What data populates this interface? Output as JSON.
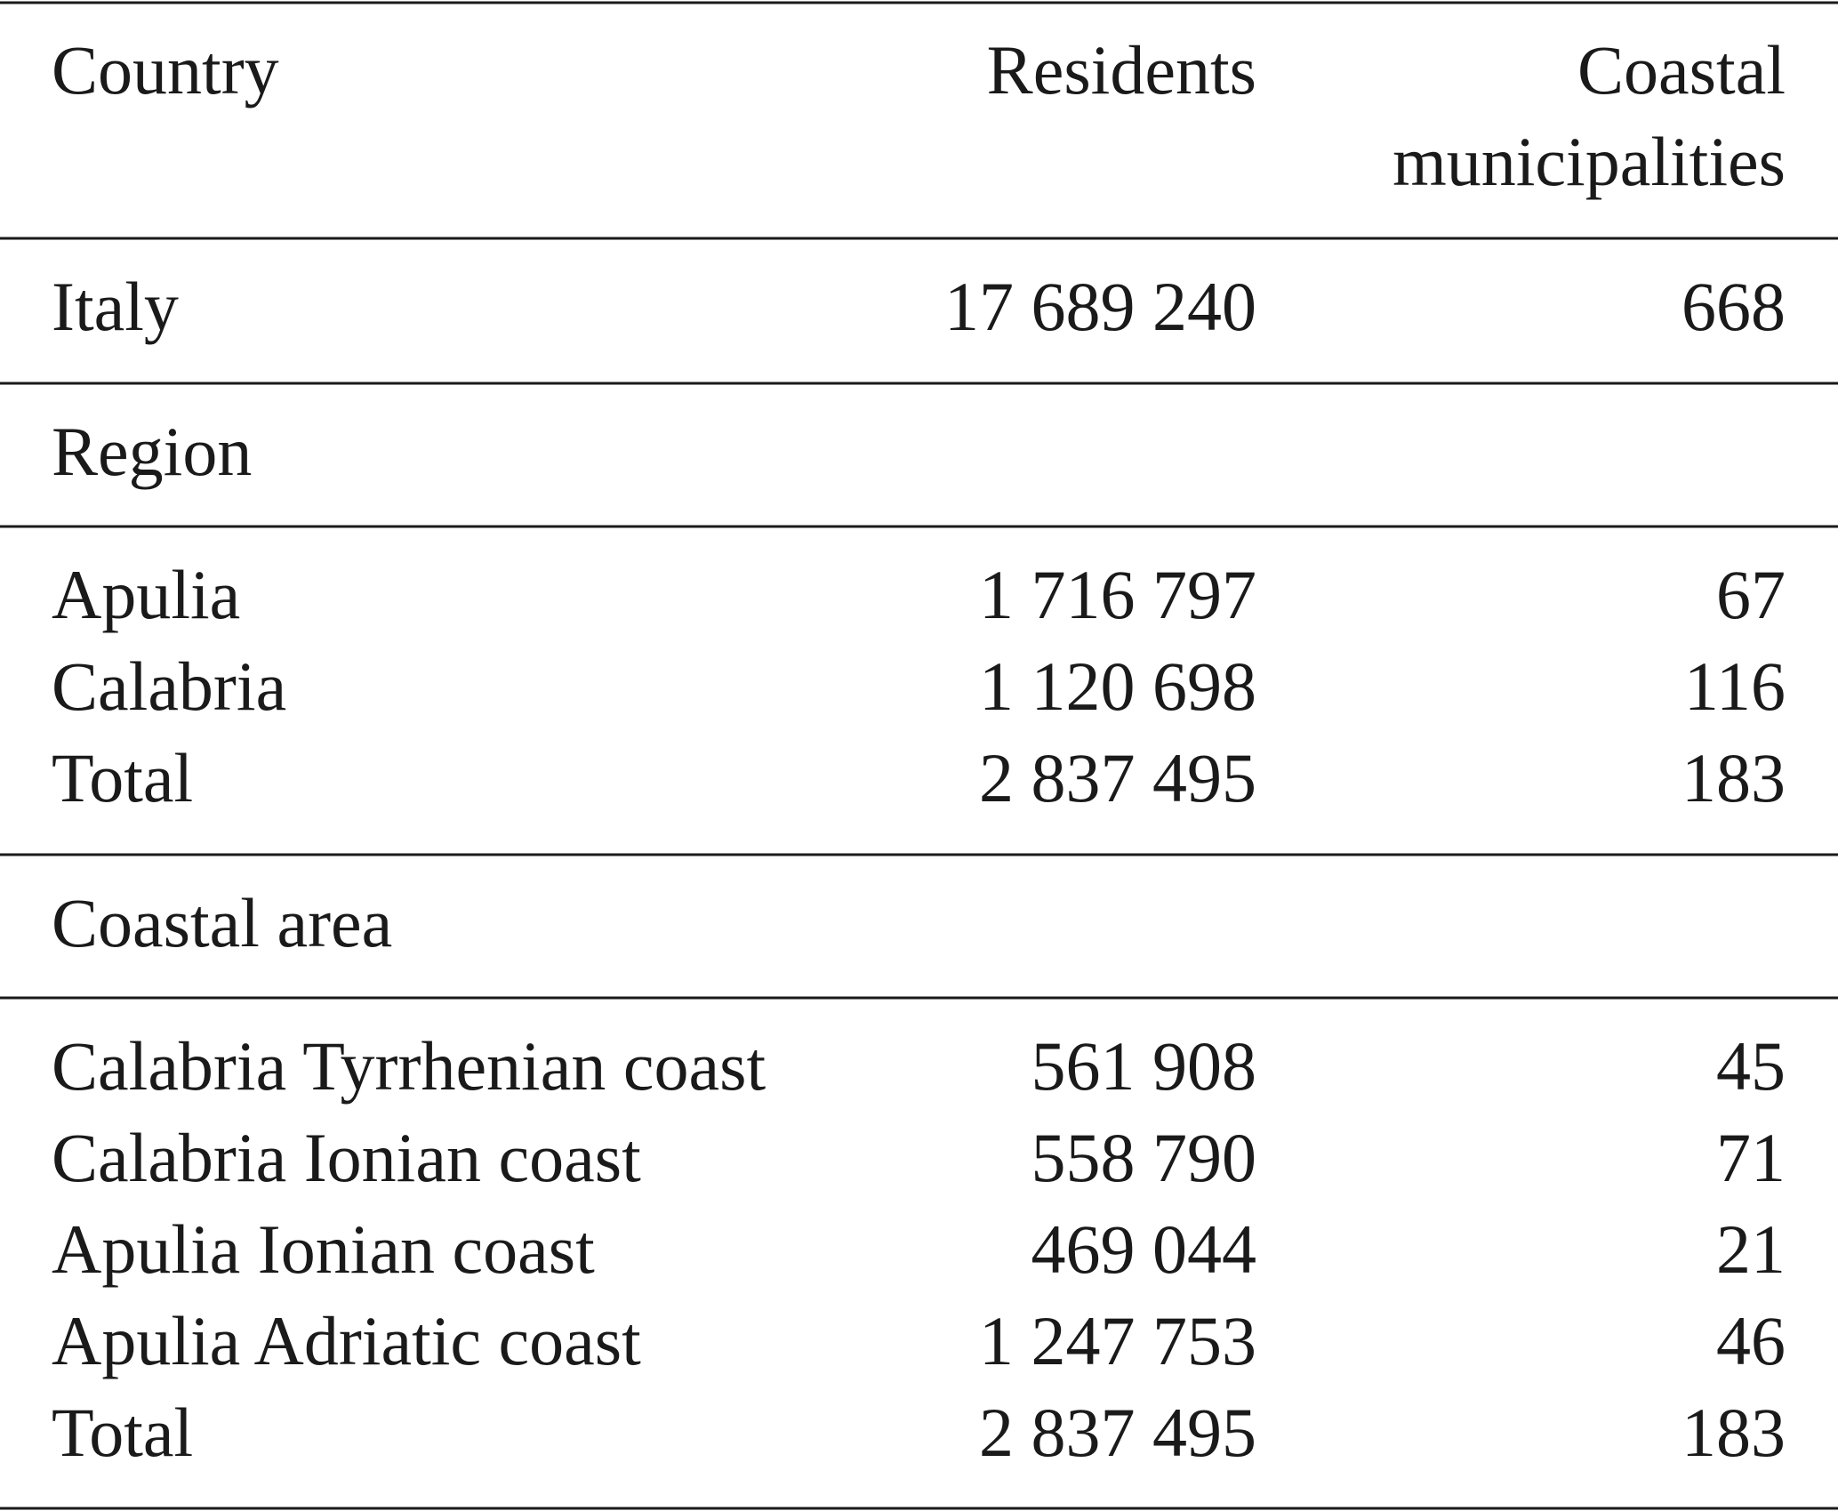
{
  "table": {
    "header": {
      "country": "Country",
      "residents": "Residents",
      "coastal_municipalities": [
        "Coastal",
        "municipalities"
      ]
    },
    "sections": [
      {
        "rows": [
          [
            "Italy",
            "17 689 240",
            "668"
          ]
        ]
      },
      {
        "title": "Region",
        "rows": [
          [
            "Apulia",
            "1 716 797",
            "67"
          ],
          [
            "Calabria",
            "1 120 698",
            "116"
          ],
          [
            "Total",
            "2 837 495",
            "183"
          ]
        ]
      },
      {
        "title": "Coastal area",
        "rows": [
          [
            "Calabria Tyrrhenian coast",
            "561 908",
            "45"
          ],
          [
            "Calabria Ionian coast",
            "558 790",
            "71"
          ],
          [
            "Apulia Ionian coast",
            "469 044",
            "21"
          ],
          [
            "Apulia Adriatic coast",
            "1 247 753",
            "46"
          ],
          [
            "Total",
            "2 837 495",
            "183"
          ]
        ]
      }
    ]
  }
}
